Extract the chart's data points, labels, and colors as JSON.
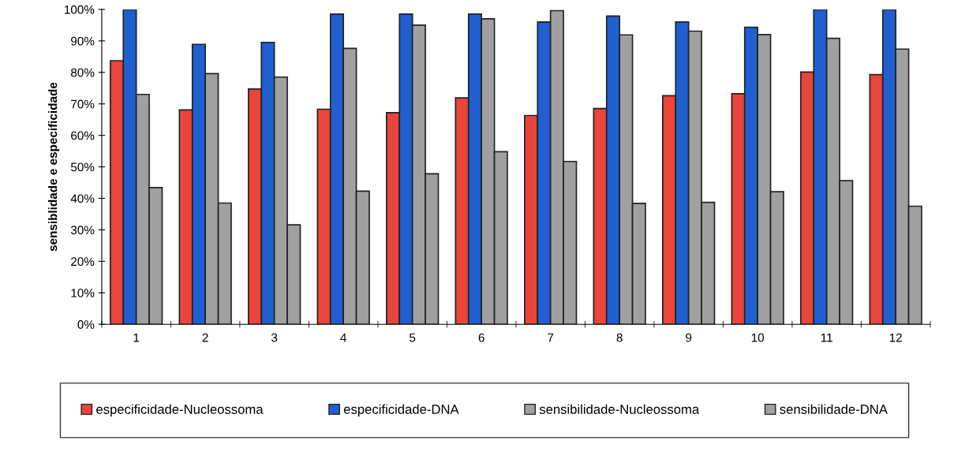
{
  "chart_data": {
    "type": "bar",
    "ylabel": "sensiblidade e especificidade",
    "categories": [
      "1",
      "2",
      "3",
      "4",
      "5",
      "6",
      "7",
      "8",
      "9",
      "10",
      "11",
      "12"
    ],
    "series": [
      {
        "name": "especificidade-Nucleossoma",
        "color": "#e8453c",
        "values": [
          83.7,
          68.1,
          74.7,
          68.3,
          67.2,
          71.9,
          66.3,
          68.5,
          72.6,
          73.2,
          80.1,
          79.3
        ]
      },
      {
        "name": "especificidade-DNA",
        "color": "#1f5fd0",
        "values": [
          100,
          88.9,
          89.5,
          98.5,
          98.5,
          98.5,
          96.0,
          97.9,
          96.0,
          94.3,
          100,
          100
        ]
      },
      {
        "name": "sensibilidade-Nucleossoma",
        "color": "#a0a0a0",
        "values": [
          73.0,
          79.6,
          78.5,
          87.6,
          95.0,
          97.0,
          99.6,
          91.9,
          93.1,
          92.0,
          90.8,
          87.4
        ]
      },
      {
        "name": "sensibilidade-DNA",
        "color": "#a0a0a0",
        "values": [
          43.4,
          38.5,
          31.6,
          42.3,
          47.8,
          54.8,
          51.7,
          38.4,
          38.7,
          42.1,
          45.6,
          37.5
        ]
      }
    ],
    "ylim": [
      0,
      100
    ],
    "yticks": [
      {
        "value": 0,
        "label": "0%"
      },
      {
        "value": 10,
        "label": "10%"
      },
      {
        "value": 20,
        "label": "20%"
      },
      {
        "value": 30,
        "label": "30%"
      },
      {
        "value": 40,
        "label": "40%"
      },
      {
        "value": 50,
        "label": "50%"
      },
      {
        "value": 60,
        "label": "60%"
      },
      {
        "value": 70,
        "label": "70%"
      },
      {
        "value": 80,
        "label": "80%"
      },
      {
        "value": 90,
        "label": "90%"
      },
      {
        "value": 100,
        "label": "100%"
      }
    ],
    "grid": false,
    "legend": "bottom"
  }
}
